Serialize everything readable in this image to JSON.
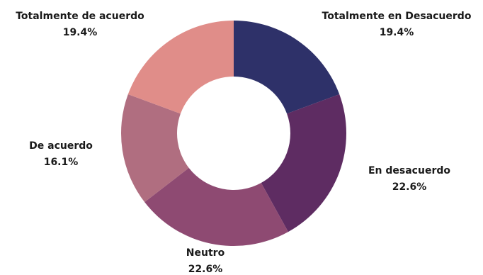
{
  "chart_data": {
    "type": "pie",
    "variant": "donut",
    "title": "",
    "slices": [
      {
        "name": "Totalmente en Desacuerdo",
        "value": 19.4,
        "value_label": "19.4%",
        "color": "#2e3169"
      },
      {
        "name": "En desacuerdo",
        "value": 22.6,
        "value_label": "22.6%",
        "color": "#5e2c62"
      },
      {
        "name": "Neutro",
        "value": 22.6,
        "value_label": "22.6%",
        "color": "#8e4a72"
      },
      {
        "name": "De acuerdo",
        "value": 16.1,
        "value_label": "16.1%",
        "color": "#b06e80"
      },
      {
        "name": "Totalmente de acuerdo",
        "value": 19.4,
        "value_label": "19.4%",
        "color": "#e08d89"
      }
    ],
    "start_angle_deg": 0,
    "direction": "clockwise",
    "legend": "none"
  }
}
